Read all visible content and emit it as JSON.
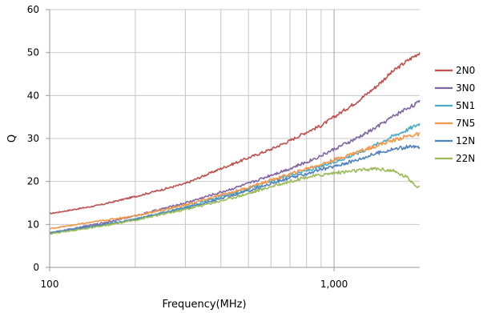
{
  "chart_data": {
    "type": "line",
    "title": "",
    "xlabel": "Frequency(MHz)",
    "ylabel": "Q",
    "x_scale": "log",
    "xlim": [
      100,
      2000
    ],
    "ylim": [
      0,
      60
    ],
    "y_ticks": [
      0,
      10,
      20,
      30,
      40,
      50,
      60
    ],
    "x_ticks_labeled": [
      {
        "value": 100,
        "label": "100"
      },
      {
        "value": 1000,
        "label": "1,000"
      }
    ],
    "x_minor_gridlines": [
      200,
      300,
      400,
      500,
      600,
      700,
      800,
      900
    ],
    "grid": true,
    "legend_position": "right",
    "x": [
      100,
      150,
      200,
      300,
      400,
      500,
      600,
      700,
      800,
      900,
      1000,
      1200,
      1400,
      1600,
      1800,
      2000
    ],
    "series": [
      {
        "name": "2N0",
        "color": "#c0504d",
        "values": [
          12.5,
          14.5,
          16.5,
          19.5,
          23.0,
          25.5,
          27.5,
          29.5,
          31.5,
          33.0,
          35.0,
          38.5,
          42.0,
          45.5,
          48.0,
          50.0
        ]
      },
      {
        "name": "3N0",
        "color": "#8064a2",
        "values": [
          8.0,
          10.2,
          12.0,
          15.0,
          17.5,
          19.5,
          21.5,
          23.0,
          24.5,
          26.0,
          27.5,
          30.0,
          32.5,
          35.0,
          37.0,
          38.5
        ]
      },
      {
        "name": "5N1",
        "color": "#4bacc6",
        "values": [
          8.0,
          9.8,
          11.2,
          14.0,
          16.5,
          18.3,
          20.0,
          21.5,
          22.5,
          23.5,
          24.5,
          26.5,
          28.5,
          30.5,
          32.0,
          33.5
        ]
      },
      {
        "name": "7N5",
        "color": "#f79646",
        "values": [
          9.0,
          10.8,
          12.0,
          14.5,
          16.8,
          18.6,
          20.3,
          21.7,
          23.0,
          24.0,
          25.0,
          26.8,
          28.3,
          29.5,
          30.5,
          31.0
        ]
      },
      {
        "name": "12N",
        "color": "#4f81bd",
        "values": [
          8.0,
          9.8,
          11.2,
          13.8,
          16.0,
          17.8,
          19.5,
          20.8,
          21.8,
          22.8,
          23.5,
          25.0,
          26.5,
          27.5,
          28.0,
          28.0
        ]
      },
      {
        "name": "22N",
        "color": "#9bbb59",
        "values": [
          7.8,
          9.5,
          11.0,
          13.5,
          15.5,
          17.2,
          18.8,
          20.0,
          21.0,
          21.5,
          22.0,
          22.5,
          23.0,
          22.5,
          21.0,
          18.5
        ]
      }
    ]
  }
}
